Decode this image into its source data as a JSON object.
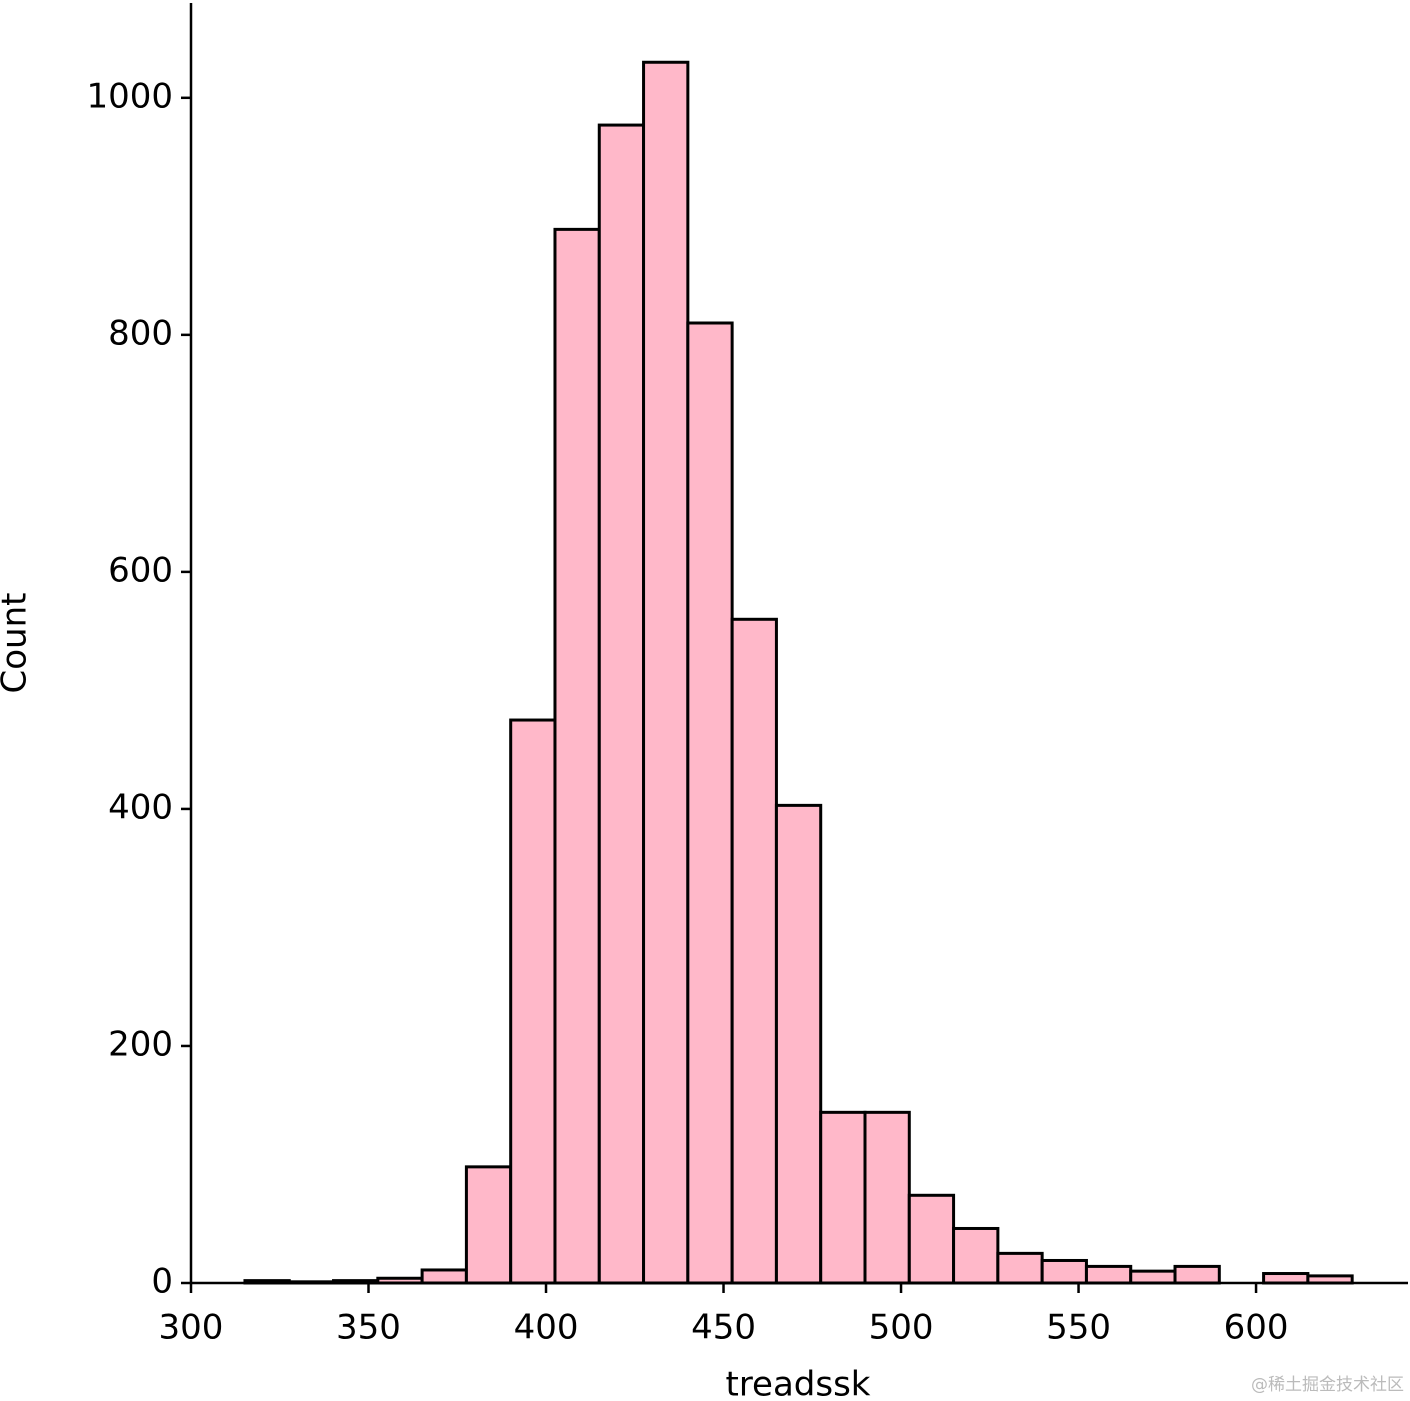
{
  "chart_data": {
    "type": "histogram",
    "x_label": "treadssk",
    "y_label": "Count",
    "bins": [
      315.2,
      327.675,
      340.15,
      352.625,
      365.1,
      377.575,
      390.05,
      402.525,
      415.0,
      427.475,
      439.95,
      452.425,
      464.9,
      477.375,
      489.85,
      502.325,
      514.8,
      527.275,
      539.75,
      552.225,
      564.7,
      577.175,
      589.65,
      602.125,
      614.6,
      627.075
    ],
    "counts": [
      2,
      1,
      2,
      4,
      11,
      98,
      475,
      889,
      977,
      1030,
      810,
      560,
      403,
      144,
      144,
      74,
      46,
      25,
      19,
      14,
      10,
      14,
      0,
      8,
      6
    ],
    "color": "#ffb8c9",
    "edge_color": "#000000",
    "xlim": [
      300,
      642.8
    ],
    "ylim": [
      0,
      1080
    ],
    "xticks": [
      300,
      350,
      400,
      450,
      500,
      550,
      600
    ],
    "yticks": [
      0,
      200,
      400,
      600,
      800,
      1000
    ],
    "annotation": "@稀土掘金技术社区"
  }
}
